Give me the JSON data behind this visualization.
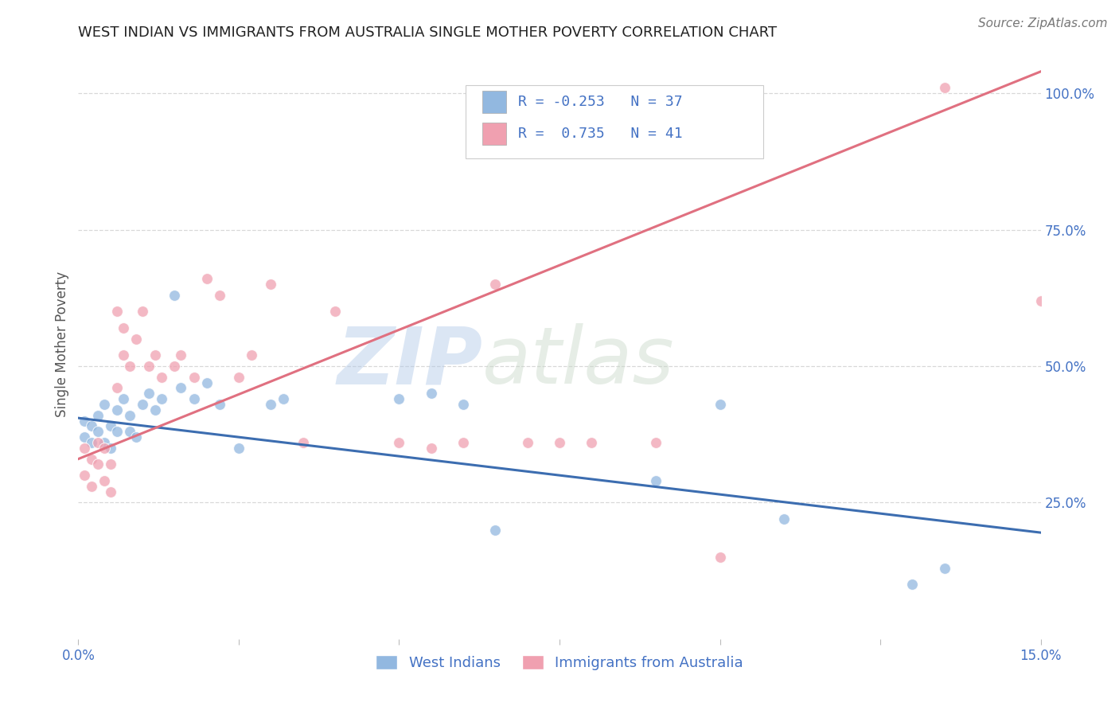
{
  "title": "WEST INDIAN VS IMMIGRANTS FROM AUSTRALIA SINGLE MOTHER POVERTY CORRELATION CHART",
  "source": "Source: ZipAtlas.com",
  "ylabel": "Single Mother Poverty",
  "x_min": 0.0,
  "x_max": 0.15,
  "y_min": 0.0,
  "y_max": 1.08,
  "x_ticks": [
    0.0,
    0.025,
    0.05,
    0.075,
    0.1,
    0.125,
    0.15
  ],
  "y_ticks_right": [
    0.25,
    0.5,
    0.75,
    1.0
  ],
  "y_tick_labels_right": [
    "25.0%",
    "50.0%",
    "75.0%",
    "100.0%"
  ],
  "blue_color": "#92b8e0",
  "pink_color": "#f0a0b0",
  "blue_line_color": "#3c6db0",
  "pink_line_color": "#e07080",
  "legend_R_blue": "-0.253",
  "legend_N_blue": "37",
  "legend_R_pink": "0.735",
  "legend_N_pink": "41",
  "legend_label_blue": "West Indians",
  "legend_label_pink": "Immigrants from Australia",
  "watermark_zip": "ZIP",
  "watermark_atlas": "atlas",
  "background_color": "#ffffff",
  "grid_color": "#d8d8d8",
  "blue_scatter_x": [
    0.001,
    0.001,
    0.002,
    0.002,
    0.003,
    0.003,
    0.004,
    0.004,
    0.005,
    0.005,
    0.006,
    0.006,
    0.007,
    0.008,
    0.008,
    0.009,
    0.01,
    0.011,
    0.012,
    0.013,
    0.015,
    0.016,
    0.018,
    0.02,
    0.022,
    0.025,
    0.03,
    0.032,
    0.05,
    0.055,
    0.06,
    0.065,
    0.09,
    0.1,
    0.11,
    0.13,
    0.135
  ],
  "blue_scatter_y": [
    0.37,
    0.4,
    0.36,
    0.39,
    0.38,
    0.41,
    0.36,
    0.43,
    0.35,
    0.39,
    0.42,
    0.38,
    0.44,
    0.38,
    0.41,
    0.37,
    0.43,
    0.45,
    0.42,
    0.44,
    0.63,
    0.46,
    0.44,
    0.47,
    0.43,
    0.35,
    0.43,
    0.44,
    0.44,
    0.45,
    0.43,
    0.2,
    0.29,
    0.43,
    0.22,
    0.1,
    0.13
  ],
  "pink_scatter_x": [
    0.001,
    0.001,
    0.002,
    0.002,
    0.003,
    0.003,
    0.004,
    0.004,
    0.005,
    0.005,
    0.006,
    0.006,
    0.007,
    0.007,
    0.008,
    0.009,
    0.01,
    0.011,
    0.012,
    0.013,
    0.015,
    0.016,
    0.018,
    0.02,
    0.022,
    0.025,
    0.027,
    0.03,
    0.035,
    0.04,
    0.05,
    0.055,
    0.06,
    0.065,
    0.07,
    0.075,
    0.08,
    0.09,
    0.1,
    0.135,
    0.15
  ],
  "pink_scatter_y": [
    0.3,
    0.35,
    0.28,
    0.33,
    0.32,
    0.36,
    0.35,
    0.29,
    0.32,
    0.27,
    0.6,
    0.46,
    0.57,
    0.52,
    0.5,
    0.55,
    0.6,
    0.5,
    0.52,
    0.48,
    0.5,
    0.52,
    0.48,
    0.66,
    0.63,
    0.48,
    0.52,
    0.65,
    0.36,
    0.6,
    0.36,
    0.35,
    0.36,
    0.65,
    0.36,
    0.36,
    0.36,
    0.36,
    0.15,
    1.01,
    0.62
  ],
  "blue_trend_x": [
    0.0,
    0.15
  ],
  "blue_trend_y": [
    0.405,
    0.195
  ],
  "pink_trend_x": [
    0.0,
    0.15
  ],
  "pink_trend_y": [
    0.33,
    1.04
  ]
}
